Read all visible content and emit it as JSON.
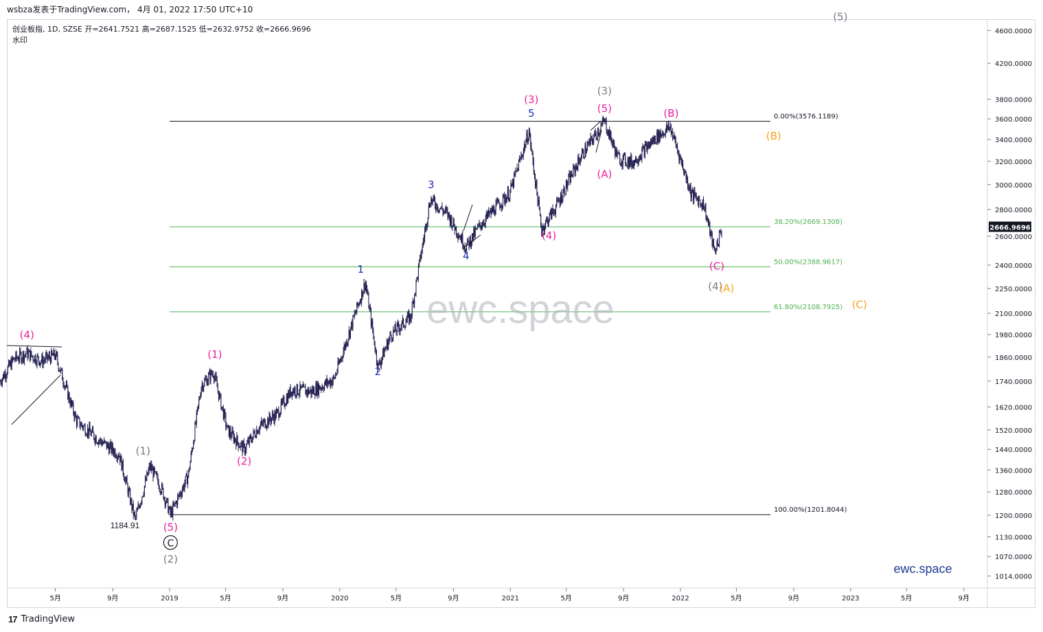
{
  "header": {
    "publish_line": "wsbza发表于TradingView.com， 4月 01, 2022 17:50 UTC+10"
  },
  "legend": {
    "symbol_line": "创业板指, 1D, SZSE  开=2641.7521  高=2687.1525  低=2632.9752  收=2666.9696",
    "watermark_label": "水印"
  },
  "watermark": "ewc.space",
  "brand_bottom_right": "ewc.space",
  "footer": {
    "logo_text": "TradingView",
    "logo_mark": "17"
  },
  "colors": {
    "candles": "#1f1b4d",
    "fib_0": "#131722",
    "fib_green": "#4caf50",
    "magenta": "#e91e9c",
    "blue": "#2230b8",
    "gray": "#787b86",
    "orange": "#f7a21b",
    "price_tag_bg": "#131722"
  },
  "chart_data": {
    "type": "candlestick",
    "symbol": "创业板指",
    "interval": "1D",
    "exchange": "SZSE",
    "scale": "log",
    "last": {
      "open": 2641.7521,
      "high": 2687.1525,
      "low": 2632.9752,
      "close": 2666.9696
    },
    "current_price_label": "2666.9696",
    "y_ticks": [
      "4600.0000",
      "4200.0000",
      "3800.0000",
      "3600.0000",
      "3400.0000",
      "3200.0000",
      "3000.0000",
      "2800.0000",
      "2600.0000",
      "2400.0000",
      "2250.0000",
      "2100.0000",
      "1980.0000",
      "1860.0000",
      "1740.0000",
      "1620.0000",
      "1520.0000",
      "1440.0000",
      "1360.0000",
      "1280.0000",
      "1200.0000",
      "1130.0000",
      "1070.0000",
      "1014.0000"
    ],
    "x_ticks": [
      "5月",
      "9月",
      "2019",
      "5月",
      "9月",
      "2020",
      "5月",
      "9月",
      "2021",
      "5月",
      "9月",
      "2022",
      "5月",
      "9月",
      "2023",
      "5月",
      "9月"
    ],
    "ylim": [
      980,
      4850
    ],
    "price_path": [
      [
        "2018-01-02",
        1740
      ],
      [
        "2018-02-01",
        1850
      ],
      [
        "2018-03-01",
        1880
      ],
      [
        "2018-04-01",
        1840
      ],
      [
        "2018-05-01",
        1870
      ],
      [
        "2018-06-15",
        1560
      ],
      [
        "2018-08-01",
        1480
      ],
      [
        "2018-09-15",
        1420
      ],
      [
        "2018-10-19",
        1185
      ],
      [
        "2018-11-20",
        1375
      ],
      [
        "2018-12-15",
        1290
      ],
      [
        "2019-01-03",
        1202
      ],
      [
        "2019-02-10",
        1340
      ],
      [
        "2019-03-10",
        1720
      ],
      [
        "2019-04-05",
        1785
      ],
      [
        "2019-05-05",
        1520
      ],
      [
        "2019-06-10",
        1440
      ],
      [
        "2019-07-10",
        1530
      ],
      [
        "2019-08-20",
        1590
      ],
      [
        "2019-09-20",
        1700
      ],
      [
        "2019-11-01",
        1690
      ],
      [
        "2019-12-20",
        1750
      ],
      [
        "2020-02-25",
        2290
      ],
      [
        "2020-03-23",
        1810
      ],
      [
        "2020-04-20",
        1980
      ],
      [
        "2020-06-01",
        2080
      ],
      [
        "2020-07-13",
        2880
      ],
      [
        "2020-08-20",
        2760
      ],
      [
        "2020-09-28",
        2525
      ],
      [
        "2020-11-01",
        2700
      ],
      [
        "2020-12-31",
        2935
      ],
      [
        "2021-02-10",
        3475
      ],
      [
        "2021-03-09",
        2650
      ],
      [
        "2021-04-10",
        2830
      ],
      [
        "2021-06-01",
        3240
      ],
      [
        "2021-07-22",
        3576
      ],
      [
        "2021-08-20",
        3230
      ],
      [
        "2021-09-20",
        3190
      ],
      [
        "2021-11-10",
        3420
      ],
      [
        "2021-12-10",
        3520
      ],
      [
        "2022-01-25",
        2920
      ],
      [
        "2022-02-20",
        2840
      ],
      [
        "2022-03-15",
        2490
      ],
      [
        "2022-04-01",
        2667
      ]
    ],
    "fibonacci": [
      {
        "label": "0.00%(3576.1189)",
        "value": 3576.1189
      },
      {
        "label": "38.20%(2669.1308)",
        "value": 2669.1308
      },
      {
        "label": "50.00%(2388.9617)",
        "value": 2388.9617
      },
      {
        "label": "61.80%(2108.7925)",
        "value": 2108.7925
      },
      {
        "label": "100.00%(1201.8044)",
        "value": 1201.8044
      }
    ],
    "price_annotation": {
      "text": "1184.91",
      "value": 1184.91
    },
    "wave_labels": [
      {
        "text": "(4)",
        "color": "magenta",
        "date": "2018-03-01",
        "price": 1960
      },
      {
        "text": "(1)",
        "color": "gray",
        "date": "2018-11-05",
        "price": 1420
      },
      {
        "text": "(5)",
        "color": "magenta",
        "date": "2019-01-03",
        "price": 1150
      },
      {
        "text": "C",
        "color": "circled",
        "date": "2019-01-03",
        "price": 1102
      },
      {
        "text": "(2)",
        "color": "gray",
        "date": "2019-01-03",
        "price": 1052
      },
      {
        "text": "(1)",
        "color": "magenta",
        "date": "2019-04-08",
        "price": 1855
      },
      {
        "text": "(2)",
        "color": "magenta",
        "date": "2019-06-10",
        "price": 1380
      },
      {
        "text": "1",
        "color": "blue",
        "date": "2020-02-15",
        "price": 2350
      },
      {
        "text": "2",
        "color": "blue",
        "date": "2020-03-23",
        "price": 1770
      },
      {
        "text": "3",
        "color": "blue",
        "date": "2020-07-15",
        "price": 2970
      },
      {
        "text": "4",
        "color": "blue",
        "date": "2020-09-28",
        "price": 2440
      },
      {
        "text": "(3)",
        "color": "magenta",
        "date": "2021-02-15",
        "price": 3760
      },
      {
        "text": "5",
        "color": "blue",
        "date": "2021-02-15",
        "price": 3620
      },
      {
        "text": "(4)",
        "color": "magenta",
        "date": "2021-03-25",
        "price": 2580
      },
      {
        "text": "(3)",
        "color": "gray",
        "date": "2021-07-22",
        "price": 3850
      },
      {
        "text": "(5)",
        "color": "magenta",
        "date": "2021-07-22",
        "price": 3670
      },
      {
        "text": "(A)",
        "color": "magenta",
        "date": "2021-07-22",
        "price": 3060
      },
      {
        "text": "(B)",
        "color": "magenta",
        "date": "2021-12-12",
        "price": 3620
      },
      {
        "text": "(C)",
        "color": "magenta",
        "date": "2022-03-20",
        "price": 2370
      },
      {
        "text": "(4)",
        "color": "gray",
        "date": "2022-03-17",
        "price": 2240
      },
      {
        "text": "(A)",
        "color": "orange",
        "date": "2022-04-10",
        "price": 2230
      },
      {
        "text": "(B)",
        "color": "orange",
        "date": "2022-07-20",
        "price": 3400
      },
      {
        "text": "(C)",
        "color": "orange",
        "date": "2023-01-20",
        "price": 2130
      },
      {
        "text": "(5)",
        "color": "gray",
        "date": "2022-12-10",
        "price": 4730
      }
    ]
  }
}
